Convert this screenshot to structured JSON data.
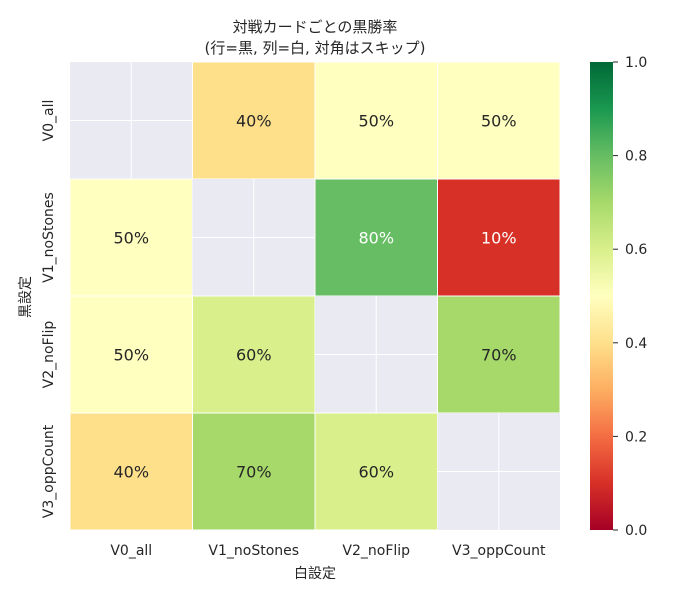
{
  "chart_data": {
    "type": "heatmap",
    "title": "対戦カードごとの黒勝率",
    "subtitle": "(行=黒, 列=白, 対角はスキップ)",
    "xlabel": "白設定",
    "ylabel": "黒設定",
    "x_categories": [
      "V0_all",
      "V1_noStones",
      "V2_noFlip",
      "V3_oppCount"
    ],
    "y_categories": [
      "V0_all",
      "V1_noStones",
      "V2_noFlip",
      "V3_oppCount"
    ],
    "values": [
      [
        null,
        0.4,
        0.5,
        0.5
      ],
      [
        0.5,
        null,
        0.8,
        0.1
      ],
      [
        0.5,
        0.6,
        null,
        0.7
      ],
      [
        0.4,
        0.7,
        0.6,
        null
      ]
    ],
    "cell_labels": [
      [
        "",
        "40%",
        "50%",
        "50%"
      ],
      [
        "50%",
        "",
        "80%",
        "10%"
      ],
      [
        "50%",
        "60%",
        "",
        "70%"
      ],
      [
        "40%",
        "70%",
        "60%",
        ""
      ]
    ],
    "colorbar": {
      "range": [
        0,
        1
      ],
      "ticks": [
        "0.0",
        "0.2",
        "0.4",
        "0.6",
        "0.8",
        "1.0"
      ],
      "colormap": "RdYlGn"
    },
    "missing_cell_color": "#eaeaf2",
    "grid": true
  }
}
